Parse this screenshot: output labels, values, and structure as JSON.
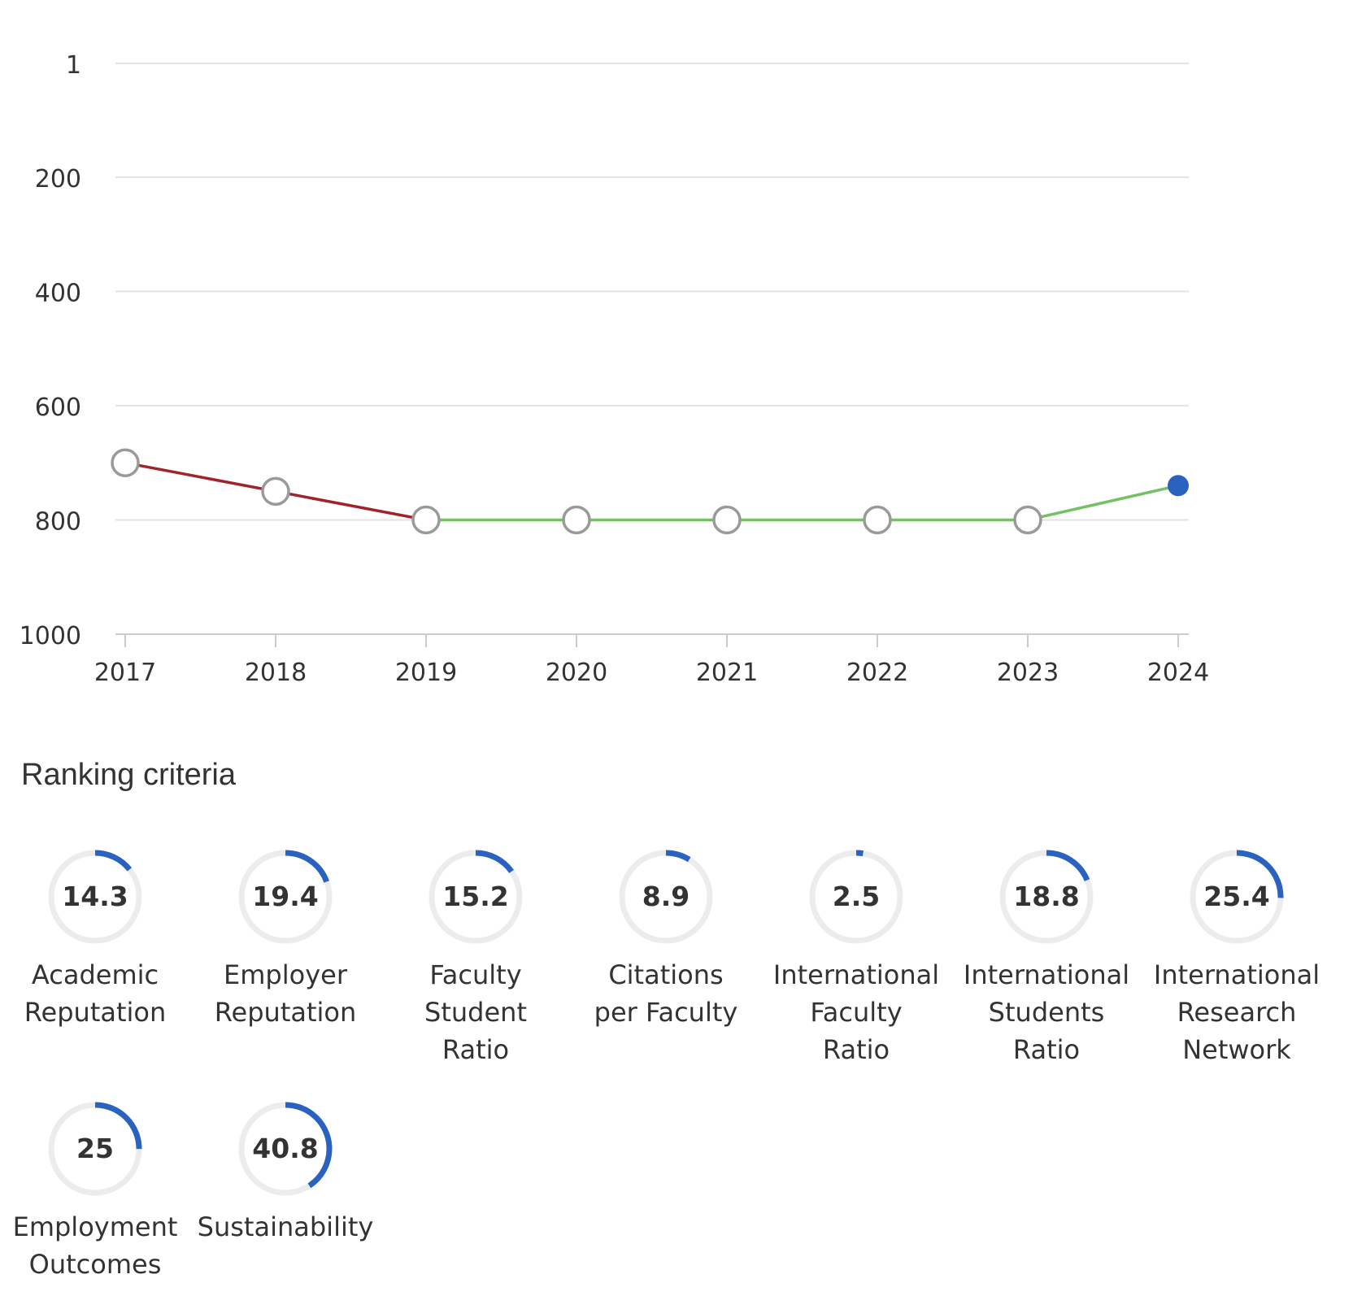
{
  "chart_data": {
    "type": "line",
    "x": [
      "2017",
      "2018",
      "2019",
      "2020",
      "2021",
      "2022",
      "2023",
      "2024"
    ],
    "values": [
      700,
      750,
      800,
      800,
      800,
      800,
      800,
      740
    ],
    "yticks": [
      "1",
      "200",
      "400",
      "600",
      "800",
      "1000"
    ],
    "ylim": [
      1000,
      1
    ],
    "y_reversed": true,
    "grid": true,
    "colors": {
      "decline": "#a0232b",
      "improve": "#74c163",
      "marker_stroke": "#9a9a9a",
      "current_marker": "#2a62c0",
      "grid": "#e3e3e3",
      "axis": "#cccccc"
    }
  },
  "criteria": {
    "title": "Ranking criteria",
    "ring_color": "#2a62c0",
    "track_color": "#ececec",
    "items": [
      {
        "value": "14.3",
        "label": "Academic\nReputation",
        "score": 14.3
      },
      {
        "value": "19.4",
        "label": "Employer\nReputation",
        "score": 19.4
      },
      {
        "value": "15.2",
        "label": "Faculty\nStudent\nRatio",
        "score": 15.2
      },
      {
        "value": "8.9",
        "label": "Citations\nper Faculty",
        "score": 8.9
      },
      {
        "value": "2.5",
        "label": "International\nFaculty\nRatio",
        "score": 2.5
      },
      {
        "value": "18.8",
        "label": "International\nStudents\nRatio",
        "score": 18.8
      },
      {
        "value": "25.4",
        "label": "International\nResearch\nNetwork",
        "score": 25.4
      },
      {
        "value": "25",
        "label": "Employment\nOutcomes",
        "score": 25
      },
      {
        "value": "40.8",
        "label": "Sustainability",
        "score": 40.8
      }
    ]
  }
}
